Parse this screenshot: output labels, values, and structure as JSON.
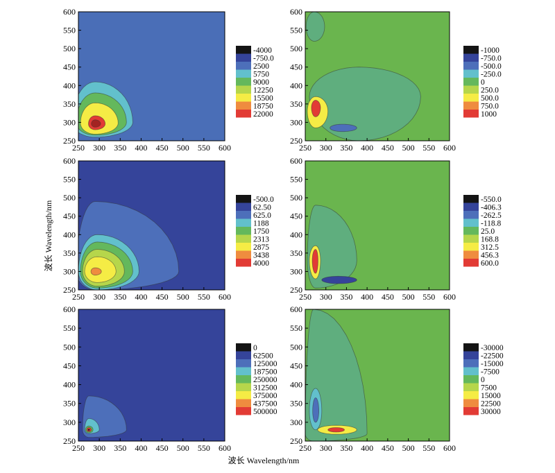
{
  "figure": {
    "xlabel": "波长 Wavelength/nm",
    "ylabel": "波长 Wavelength/nm"
  },
  "chart_data": [
    {
      "type": "heatmap",
      "xlim": [
        250,
        600
      ],
      "ylim": [
        250,
        600
      ],
      "xticks": [
        250,
        300,
        350,
        400,
        450,
        500,
        550,
        600
      ],
      "yticks": [
        250,
        300,
        350,
        400,
        450,
        500,
        550,
        600
      ],
      "background": "#4a6eb7",
      "legend": {
        "labels": [
          "-4000",
          "-750.0",
          "2500",
          "5750",
          "9000",
          "12250",
          "15500",
          "18750",
          "22000"
        ],
        "colors": [
          "#141414",
          "#35449a",
          "#4d6fba",
          "#62c0cc",
          "#64b85c",
          "#b6d64b",
          "#f5ec45",
          "#ef8c3f",
          "#e23b35"
        ]
      },
      "regions": [
        {
          "cx": 290,
          "cy": 300,
          "rx0": 55,
          "rx1": 90,
          "ry0": 40,
          "ry1": 110,
          "color": "#62c0cc"
        },
        {
          "cx": 290,
          "cy": 300,
          "rx0": 45,
          "rx1": 75,
          "ry0": 35,
          "ry1": 80,
          "color": "#64b85c"
        },
        {
          "cx": 290,
          "cy": 298,
          "rx0": 35,
          "rx1": 55,
          "ry0": 30,
          "ry1": 55,
          "color": "#f5ec45"
        },
        {
          "cx": 290,
          "cy": 296,
          "rx0": 16,
          "rx1": 24,
          "ry0": 16,
          "ry1": 22,
          "color": "#e23b35"
        },
        {
          "cx": 290,
          "cy": 296,
          "rx0": 9,
          "rx1": 13,
          "ry0": 9,
          "ry1": 11,
          "color": "#a32322"
        }
      ]
    },
    {
      "type": "heatmap",
      "xlim": [
        250,
        600
      ],
      "ylim": [
        250,
        600
      ],
      "xticks": [
        250,
        300,
        350,
        400,
        450,
        500,
        550,
        600
      ],
      "yticks": [
        250,
        300,
        350,
        400,
        450,
        500,
        550,
        600
      ],
      "background": "#6ab54e",
      "legend": {
        "labels": [
          "-1000",
          "-750.0",
          "-500.0",
          "-250.0",
          "0",
          "250.0",
          "500.0",
          "750.0",
          "1000"
        ],
        "colors": [
          "#141414",
          "#35449a",
          "#4d6fba",
          "#62c0cc",
          "#64b85c",
          "#b6d64b",
          "#f5ec45",
          "#ef8c3f",
          "#e23b35"
        ]
      },
      "regions": [
        {
          "cx": 380,
          "cy": 370,
          "rx0": 120,
          "rx1": 150,
          "ry0": 120,
          "ry1": 80,
          "color": "#5fae7e"
        },
        {
          "cx": 272,
          "cy": 560,
          "rx0": 20,
          "rx1": 25,
          "ry0": 40,
          "ry1": 40,
          "color": "#5fae7e"
        },
        {
          "cx": 275,
          "cy": 330,
          "rx0": 20,
          "rx1": 30,
          "ry0": 45,
          "ry1": 40,
          "color": "#f5ec45"
        },
        {
          "cx": 275,
          "cy": 340,
          "rx0": 10,
          "rx1": 12,
          "ry0": 25,
          "ry1": 20,
          "color": "#e23b35"
        },
        {
          "cx": 340,
          "cy": 285,
          "rx0": 30,
          "rx1": 35,
          "ry0": 10,
          "ry1": 10,
          "color": "#4d6fba"
        }
      ]
    },
    {
      "type": "heatmap",
      "xlim": [
        250,
        600
      ],
      "ylim": [
        250,
        600
      ],
      "xticks": [
        250,
        300,
        350,
        400,
        450,
        500,
        550,
        600
      ],
      "yticks": [
        250,
        300,
        350,
        400,
        450,
        500,
        550,
        600
      ],
      "background": "#35449a",
      "legend": {
        "labels": [
          "-500.0",
          "62.50",
          "625.0",
          "1188",
          "1750",
          "2313",
          "2875",
          "3438",
          "4000"
        ],
        "colors": [
          "#141414",
          "#35449a",
          "#4d6fba",
          "#62c0cc",
          "#64b85c",
          "#b6d64b",
          "#f5ec45",
          "#ef8c3f",
          "#e23b35"
        ]
      },
      "regions": [
        {
          "cx": 290,
          "cy": 300,
          "rx0": 45,
          "rx1": 200,
          "ry0": 50,
          "ry1": 190,
          "color": "#4d6fba"
        },
        {
          "cx": 295,
          "cy": 300,
          "rx0": 45,
          "rx1": 100,
          "ry0": 50,
          "ry1": 100,
          "color": "#62c0cc"
        },
        {
          "cx": 295,
          "cy": 300,
          "rx0": 40,
          "rx1": 85,
          "ry0": 45,
          "ry1": 80,
          "color": "#64b85c"
        },
        {
          "cx": 295,
          "cy": 300,
          "rx0": 35,
          "rx1": 65,
          "ry0": 40,
          "ry1": 60,
          "color": "#b6d64b"
        },
        {
          "cx": 295,
          "cy": 300,
          "rx0": 30,
          "rx1": 45,
          "ry0": 30,
          "ry1": 40,
          "color": "#f5ec45"
        },
        {
          "cx": 290,
          "cy": 300,
          "rx0": 10,
          "rx1": 15,
          "ry0": 10,
          "ry1": 10,
          "color": "#ef8c3f"
        }
      ]
    },
    {
      "type": "heatmap",
      "xlim": [
        250,
        600
      ],
      "ylim": [
        250,
        600
      ],
      "xticks": [
        250,
        300,
        350,
        400,
        450,
        500,
        550,
        600
      ],
      "yticks": [
        250,
        300,
        350,
        400,
        450,
        500,
        550,
        600
      ],
      "background": "#6ab54e",
      "legend": {
        "labels": [
          "-550.0",
          "-406.3",
          "-262.5",
          "-118.8",
          "25.0",
          "168.8",
          "312.5",
          "456.3",
          "600.0"
        ],
        "colors": [
          "#141414",
          "#35449a",
          "#4d6fba",
          "#62c0cc",
          "#64b85c",
          "#b6d64b",
          "#f5ec45",
          "#ef8c3f",
          "#e23b35"
        ]
      },
      "regions": [
        {
          "cx": 275,
          "cy": 330,
          "rx0": 20,
          "rx1": 100,
          "ry0": 75,
          "ry1": 150,
          "color": "#5fae7e"
        },
        {
          "cx": 275,
          "cy": 330,
          "rx0": 15,
          "rx1": 12,
          "ry0": 50,
          "ry1": 40,
          "color": "#f5ec45"
        },
        {
          "cx": 275,
          "cy": 330,
          "rx0": 8,
          "rx1": 6,
          "ry0": 35,
          "ry1": 30,
          "color": "#e23b35"
        },
        {
          "cx": 330,
          "cy": 277,
          "rx0": 40,
          "rx1": 45,
          "ry0": 10,
          "ry1": 10,
          "color": "#35449a"
        }
      ]
    },
    {
      "type": "heatmap",
      "xlim": [
        250,
        600
      ],
      "ylim": [
        250,
        600
      ],
      "xticks": [
        250,
        300,
        350,
        400,
        450,
        500,
        550,
        600
      ],
      "yticks": [
        250,
        300,
        350,
        400,
        450,
        500,
        550,
        600
      ],
      "background": "#35449a",
      "legend": {
        "labels": [
          "0",
          "62500",
          "125000",
          "187500",
          "250000",
          "312500",
          "375000",
          "437500",
          "500000"
        ],
        "colors": [
          "#141414",
          "#35449a",
          "#4d6fba",
          "#62c0cc",
          "#64b85c",
          "#b6d64b",
          "#f5ec45",
          "#ef8c3f",
          "#e23b35"
        ]
      },
      "regions": [
        {
          "cx": 275,
          "cy": 280,
          "rx0": 15,
          "rx1": 90,
          "ry0": 20,
          "ry1": 90,
          "color": "#4d6fba"
        },
        {
          "cx": 275,
          "cy": 280,
          "rx0": 10,
          "rx1": 25,
          "ry0": 10,
          "ry1": 30,
          "color": "#62c0cc"
        },
        {
          "cx": 275,
          "cy": 280,
          "rx0": 8,
          "rx1": 10,
          "ry0": 8,
          "ry1": 10,
          "color": "#64b85c"
        },
        {
          "cx": 275,
          "cy": 280,
          "rx0": 5,
          "rx1": 6,
          "ry0": 5,
          "ry1": 6,
          "color": "#e23b35"
        },
        {
          "cx": 275,
          "cy": 280,
          "rx0": 2,
          "rx1": 2,
          "ry0": 2,
          "ry1": 2,
          "color": "#141414"
        }
      ]
    },
    {
      "type": "heatmap",
      "xlim": [
        250,
        600
      ],
      "ylim": [
        250,
        600
      ],
      "xticks": [
        250,
        300,
        350,
        400,
        450,
        500,
        550,
        600
      ],
      "yticks": [
        250,
        300,
        350,
        400,
        450,
        500,
        550,
        600
      ],
      "background": "#6ab54e",
      "legend": {
        "labels": [
          "-30000",
          "-22500",
          "-15000",
          "-7500",
          "0",
          "7500",
          "15000",
          "22500",
          "30000"
        ],
        "colors": [
          "#141414",
          "#35449a",
          "#4d6fba",
          "#62c0cc",
          "#64b85c",
          "#b6d64b",
          "#f5ec45",
          "#ef8c3f",
          "#e23b35"
        ]
      },
      "regions": [
        {
          "cx": 270,
          "cy": 270,
          "rx0": 20,
          "rx1": 130,
          "ry0": 20,
          "ry1": 330,
          "color": "#5fae7e"
        },
        {
          "cx": 275,
          "cy": 330,
          "rx0": 15,
          "rx1": 15,
          "ry0": 50,
          "ry1": 60,
          "color": "#62c0cc"
        },
        {
          "cx": 275,
          "cy": 330,
          "rx0": 7,
          "rx1": 8,
          "ry0": 30,
          "ry1": 35,
          "color": "#4d6fba"
        },
        {
          "cx": 325,
          "cy": 280,
          "rx0": 45,
          "rx1": 50,
          "ry0": 12,
          "ry1": 12,
          "color": "#f5ec45"
        },
        {
          "cx": 325,
          "cy": 280,
          "rx0": 20,
          "rx1": 20,
          "ry0": 6,
          "ry1": 6,
          "color": "#e23b35"
        }
      ]
    }
  ]
}
